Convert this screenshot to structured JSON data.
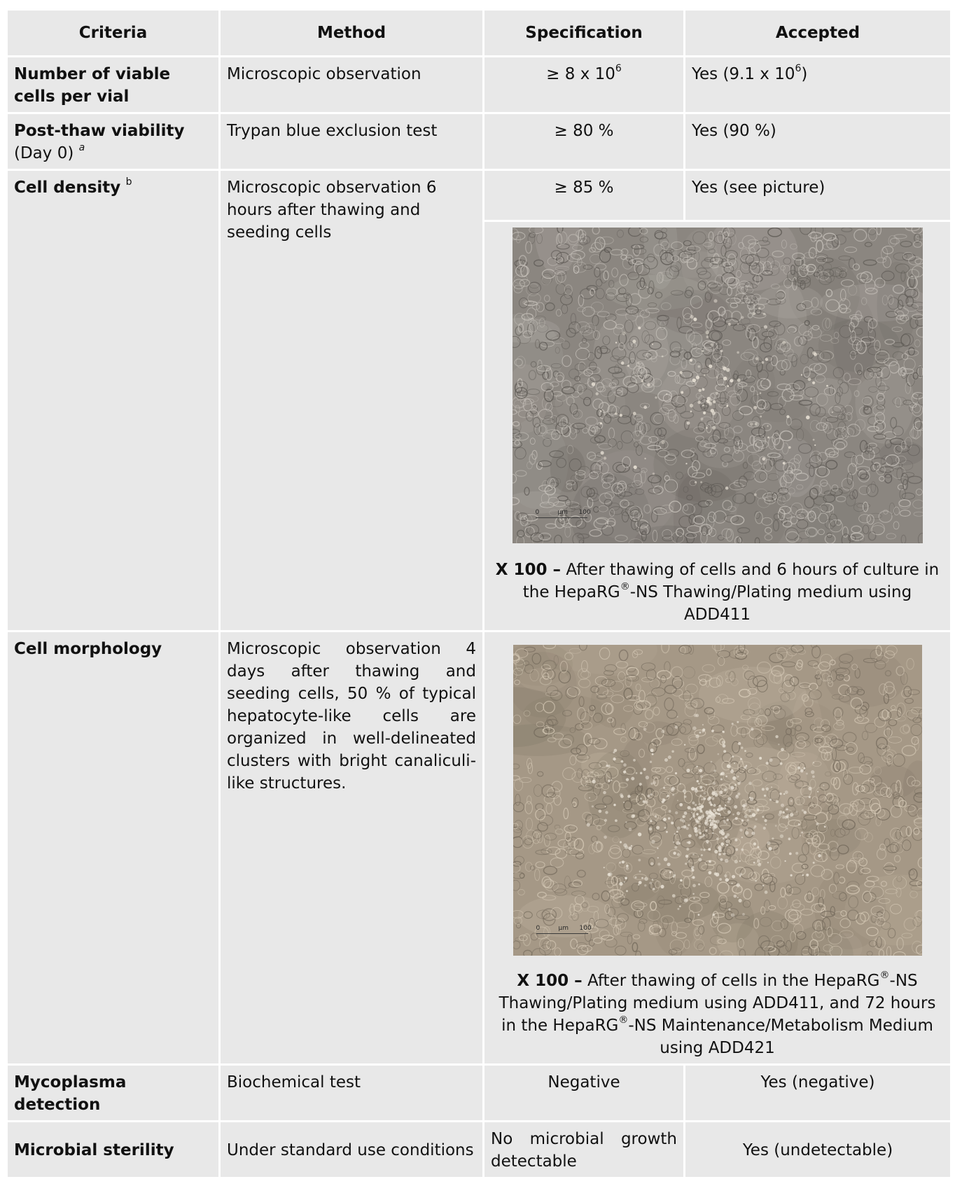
{
  "headers": {
    "criteria": "Criteria",
    "method": "Method",
    "specification": "Specification",
    "accepted": "Accepted"
  },
  "rows": {
    "viable_cells": {
      "criteria": "Number of viable cells per vial",
      "method": "Microscopic observation",
      "spec_prefix": "≥ 8 x 10",
      "spec_exp": "6",
      "accepted_prefix": "Yes (9.1 x 10",
      "accepted_exp": "6",
      "accepted_suffix": ")"
    },
    "post_thaw": {
      "criteria": "Post-thaw viability",
      "criteria_note": "(Day 0)",
      "criteria_footnote": "a",
      "method": "Trypan blue exclusion test",
      "spec": "≥ 80 %",
      "accepted": "Yes (90 %)"
    },
    "cell_density": {
      "criteria": "Cell density",
      "criteria_footnote": "b",
      "method": "Microscopic observation 6 hours after thawing and seeding cells",
      "spec": "≥ 85 %",
      "accepted": "Yes (see picture)",
      "image_scale": {
        "start": "0",
        "unit": "µm",
        "end": "100"
      },
      "caption_bold": "X 100 –",
      "caption_a": " After thawing of cells and 6 hours of culture in the HepaRG",
      "caption_reg": "®",
      "caption_b": "-NS Thawing/Plating medium using ADD411"
    },
    "cell_morphology": {
      "criteria": "Cell morphology",
      "method": "Microscopic observation 4 days after thawing and seeding cells, 50 % of typical hepatocyte-like cells are organized in well-delineated clusters with bright canaliculi-like structures.",
      "image_scale": {
        "start": "0",
        "unit": "µm",
        "end": "100"
      },
      "caption_bold": "X 100 –",
      "caption_a": " After thawing of cells in the HepaRG",
      "caption_reg1": "®",
      "caption_b": "-NS Thawing/Plating medium using ADD411, and 72 hours in the HepaRG",
      "caption_reg2": "®",
      "caption_c": "-NS Maintenance/Metabolism Medium using ADD421"
    },
    "mycoplasma": {
      "criteria": "Mycoplasma detection",
      "method": "Biochemical test",
      "spec": "Negative",
      "accepted": "Yes (negative)"
    },
    "sterility": {
      "criteria": "Microbial sterility",
      "method": "Under standard use conditions",
      "spec": "No microbial growth detectable",
      "accepted": "Yes (undetectable)"
    }
  },
  "colors": {
    "cell_bg": "#e8e8e8",
    "micro_density_bg": "#8b8680",
    "micro_morph_bg": "#a59886"
  }
}
